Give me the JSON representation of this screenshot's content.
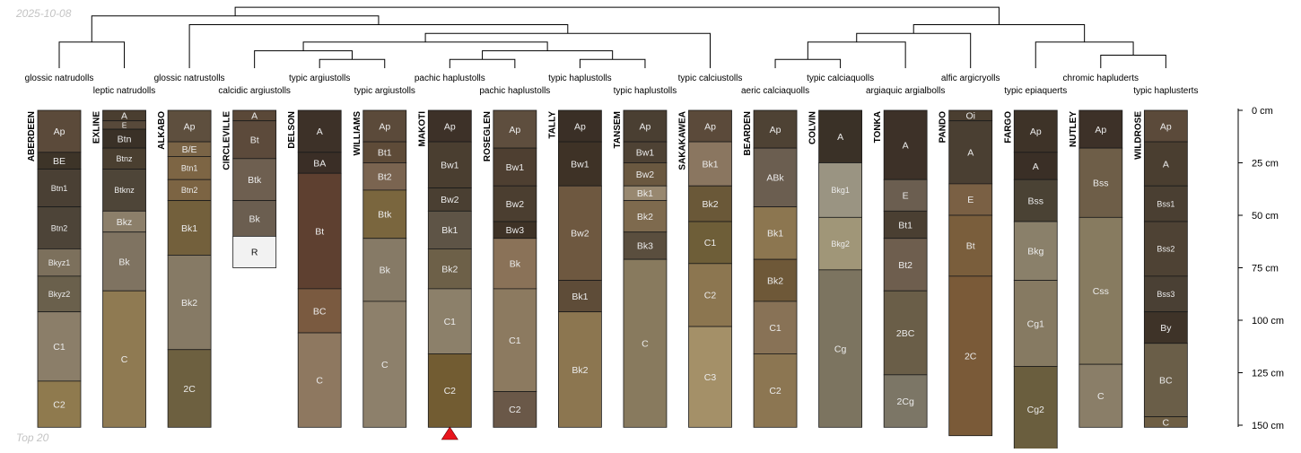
{
  "date_label": "2025-10-08",
  "footer_label": "Top 20",
  "colors": {
    "marker": "#e8141c",
    "line": "#000000",
    "horizon_border": "#1a1a1a"
  },
  "chart_data": {
    "type": "soil-profile-sketch",
    "depth_unit": "cm",
    "depth_axis": {
      "range": [
        0,
        150
      ],
      "ticks": [
        0,
        25,
        50,
        75,
        100,
        125,
        150
      ],
      "tick_labels": [
        "0 cm",
        "25 cm",
        "50 cm",
        "75 cm",
        "100 cm",
        "125 cm",
        "150 cm"
      ]
    },
    "marked_profile": "MAKOTI",
    "profiles": [
      {
        "name": "ABERDEEN",
        "taxon": "glossic natrudolls",
        "horizons": [
          {
            "name": "Ap",
            "top": 0,
            "bottom": 20,
            "color": "#5b4a3a"
          },
          {
            "name": "BE",
            "top": 20,
            "bottom": 28,
            "color": "#3d3428"
          },
          {
            "name": "Btn1",
            "top": 28,
            "bottom": 46,
            "color": "#4a4034"
          },
          {
            "name": "Btn2",
            "top": 46,
            "bottom": 66,
            "color": "#4d4438"
          },
          {
            "name": "Bkyz1",
            "top": 66,
            "bottom": 79,
            "color": "#7c705c"
          },
          {
            "name": "Bkyz2",
            "top": 79,
            "bottom": 96,
            "color": "#6a604c"
          },
          {
            "name": "C1",
            "top": 96,
            "bottom": 129,
            "color": "#8b7e69"
          },
          {
            "name": "C2",
            "top": 129,
            "bottom": 151,
            "color": "#8f7a4e"
          }
        ]
      },
      {
        "name": "EXLINE",
        "taxon": "leptic natrudolls",
        "horizons": [
          {
            "name": "A",
            "top": 0,
            "bottom": 5,
            "color": "#4a3e30"
          },
          {
            "name": "E",
            "top": 5,
            "bottom": 9,
            "color": "#57493a"
          },
          {
            "name": "Btn",
            "top": 9,
            "bottom": 18,
            "color": "#3a3127"
          },
          {
            "name": "Btnz",
            "top": 18,
            "bottom": 28,
            "color": "#4a3f30"
          },
          {
            "name": "Btknz",
            "top": 28,
            "bottom": 48,
            "color": "#4e4538"
          },
          {
            "name": "Bkz",
            "top": 48,
            "bottom": 58,
            "color": "#8c7f6a"
          },
          {
            "name": "Bk",
            "top": 58,
            "bottom": 86,
            "color": "#7f7361"
          },
          {
            "name": "C",
            "top": 86,
            "bottom": 151,
            "color": "#8f7a52"
          }
        ]
      },
      {
        "name": "ALKABO",
        "taxon": "glossic natrustolls",
        "horizons": [
          {
            "name": "Ap",
            "top": 0,
            "bottom": 15,
            "color": "#5e4f3e"
          },
          {
            "name": "B/E",
            "top": 15,
            "bottom": 22,
            "color": "#7a6446"
          },
          {
            "name": "Btn1",
            "top": 22,
            "bottom": 33,
            "color": "#7d6544"
          },
          {
            "name": "Btn2",
            "top": 33,
            "bottom": 43,
            "color": "#7c6443"
          },
          {
            "name": "Bk1",
            "top": 43,
            "bottom": 69,
            "color": "#73603c"
          },
          {
            "name": "Bk2",
            "top": 69,
            "bottom": 114,
            "color": "#867a65"
          },
          {
            "name": "2C",
            "top": 114,
            "bottom": 151,
            "color": "#6d6040"
          }
        ]
      },
      {
        "name": "CIRCLEVILLE",
        "taxon": "calcidic argiustolls",
        "horizons": [
          {
            "name": "A",
            "top": 0,
            "bottom": 5,
            "color": "#5a4838"
          },
          {
            "name": "Bt",
            "top": 5,
            "bottom": 23,
            "color": "#5c4a3b"
          },
          {
            "name": "Btk",
            "top": 23,
            "bottom": 43,
            "color": "#6e5f50"
          },
          {
            "name": "Bk",
            "top": 43,
            "bottom": 60,
            "color": "#6b5e50"
          },
          {
            "name": "R",
            "top": 60,
            "bottom": 75,
            "color": "#f2f2f2"
          }
        ]
      },
      {
        "name": "DELSON",
        "taxon": "typic argiustolls",
        "horizons": [
          {
            "name": "A",
            "top": 0,
            "bottom": 20,
            "color": "#3d3128"
          },
          {
            "name": "BA",
            "top": 20,
            "bottom": 30,
            "color": "#3a2e26"
          },
          {
            "name": "Bt",
            "top": 30,
            "bottom": 85,
            "color": "#5e4030"
          },
          {
            "name": "BC",
            "top": 85,
            "bottom": 106,
            "color": "#7a5a40"
          },
          {
            "name": "C",
            "top": 106,
            "bottom": 151,
            "color": "#8e7860"
          }
        ]
      },
      {
        "name": "WILLIAMS",
        "taxon": "typic argiustolls",
        "horizons": [
          {
            "name": "Ap",
            "top": 0,
            "bottom": 15,
            "color": "#5b4a3a"
          },
          {
            "name": "Bt1",
            "top": 15,
            "bottom": 25,
            "color": "#5e4b38"
          },
          {
            "name": "Bt2",
            "top": 25,
            "bottom": 38,
            "color": "#7a6450"
          },
          {
            "name": "Btk",
            "top": 38,
            "bottom": 61,
            "color": "#7a663e"
          },
          {
            "name": "Bk",
            "top": 61,
            "bottom": 91,
            "color": "#867a66"
          },
          {
            "name": "C",
            "top": 91,
            "bottom": 151,
            "color": "#8d806b"
          }
        ]
      },
      {
        "name": "MAKOTI",
        "taxon": "pachic haplustolls",
        "horizons": [
          {
            "name": "Ap",
            "top": 0,
            "bottom": 15,
            "color": "#3d3128"
          },
          {
            "name": "Bw1",
            "top": 15,
            "bottom": 37,
            "color": "#4a3e30"
          },
          {
            "name": "Bw2",
            "top": 37,
            "bottom": 48,
            "color": "#4a3f32"
          },
          {
            "name": "Bk1",
            "top": 48,
            "bottom": 66,
            "color": "#5e5446"
          },
          {
            "name": "Bk2",
            "top": 66,
            "bottom": 85,
            "color": "#6d6048"
          },
          {
            "name": "C1",
            "top": 85,
            "bottom": 116,
            "color": "#8c806a"
          },
          {
            "name": "C2",
            "top": 116,
            "bottom": 151,
            "color": "#725c32"
          }
        ]
      },
      {
        "name": "ROSEGLEN",
        "taxon": "pachic haplustolls",
        "horizons": [
          {
            "name": "Ap",
            "top": 0,
            "bottom": 18,
            "color": "#5e4e3e"
          },
          {
            "name": "Bw1",
            "top": 18,
            "bottom": 36,
            "color": "#4e3f31"
          },
          {
            "name": "Bw2",
            "top": 36,
            "bottom": 53,
            "color": "#4b3e30"
          },
          {
            "name": "Bw3",
            "top": 53,
            "bottom": 61,
            "color": "#3e3226"
          },
          {
            "name": "Bk",
            "top": 61,
            "bottom": 85,
            "color": "#8a7258"
          },
          {
            "name": "C1",
            "top": 85,
            "bottom": 134,
            "color": "#8c7a60"
          },
          {
            "name": "C2",
            "top": 134,
            "bottom": 151,
            "color": "#6a5848"
          }
        ]
      },
      {
        "name": "TALLY",
        "taxon": "typic haplustolls",
        "horizons": [
          {
            "name": "Ap",
            "top": 0,
            "bottom": 15,
            "color": "#3a2f26"
          },
          {
            "name": "Bw1",
            "top": 15,
            "bottom": 36,
            "color": "#3e3226"
          },
          {
            "name": "Bw2",
            "top": 36,
            "bottom": 81,
            "color": "#6e5840"
          },
          {
            "name": "Bk1",
            "top": 81,
            "bottom": 96,
            "color": "#5e4c38"
          },
          {
            "name": "Bk2",
            "top": 96,
            "bottom": 151,
            "color": "#8c7650"
          }
        ]
      },
      {
        "name": "TANSEM",
        "taxon": "typic haplustolls",
        "horizons": [
          {
            "name": "Ap",
            "top": 0,
            "bottom": 15,
            "color": "#4a3f32"
          },
          {
            "name": "Bw1",
            "top": 15,
            "bottom": 25,
            "color": "#4e4234"
          },
          {
            "name": "Bw2",
            "top": 25,
            "bottom": 36,
            "color": "#6a5840"
          },
          {
            "name": "Bk1",
            "top": 36,
            "bottom": 43,
            "color": "#988870"
          },
          {
            "name": "Bk2",
            "top": 43,
            "bottom": 58,
            "color": "#7e6a4e"
          },
          {
            "name": "Bk3",
            "top": 58,
            "bottom": 71,
            "color": "#5a4e3e"
          },
          {
            "name": "C",
            "top": 71,
            "bottom": 151,
            "color": "#887a5e"
          }
        ]
      },
      {
        "name": "SAKAKAWEA",
        "taxon": "typic calciustolls",
        "horizons": [
          {
            "name": "Ap",
            "top": 0,
            "bottom": 15,
            "color": "#5b4a3a"
          },
          {
            "name": "Bk1",
            "top": 15,
            "bottom": 36,
            "color": "#8a7660"
          },
          {
            "name": "Bk2",
            "top": 36,
            "bottom": 53,
            "color": "#6a5838"
          },
          {
            "name": "C1",
            "top": 53,
            "bottom": 73,
            "color": "#6e5e38"
          },
          {
            "name": "C2",
            "top": 73,
            "bottom": 103,
            "color": "#8c7650"
          },
          {
            "name": "C3",
            "top": 103,
            "bottom": 151,
            "color": "#a49068"
          }
        ]
      },
      {
        "name": "BEARDEN",
        "taxon": "aeric calciaquolls",
        "horizons": [
          {
            "name": "Ap",
            "top": 0,
            "bottom": 18,
            "color": "#4e4234"
          },
          {
            "name": "ABk",
            "top": 18,
            "bottom": 46,
            "color": "#6b5e50"
          },
          {
            "name": "Bk1",
            "top": 46,
            "bottom": 71,
            "color": "#8c7650"
          },
          {
            "name": "Bk2",
            "top": 71,
            "bottom": 91,
            "color": "#6e5838"
          },
          {
            "name": "C1",
            "top": 91,
            "bottom": 116,
            "color": "#887256"
          },
          {
            "name": "C2",
            "top": 116,
            "bottom": 151,
            "color": "#8c7652"
          }
        ]
      },
      {
        "name": "COLVIN",
        "taxon": "typic calciaquolls",
        "horizons": [
          {
            "name": "A",
            "top": 0,
            "bottom": 25,
            "color": "#3a3127"
          },
          {
            "name": "Bkg1",
            "top": 25,
            "bottom": 51,
            "color": "#9a9482"
          },
          {
            "name": "Bkg2",
            "top": 51,
            "bottom": 76,
            "color": "#a09678"
          },
          {
            "name": "Cg",
            "top": 76,
            "bottom": 151,
            "color": "#7c7460"
          }
        ]
      },
      {
        "name": "TONKA",
        "taxon": "argiaquic argialbolls",
        "horizons": [
          {
            "name": "A",
            "top": 0,
            "bottom": 33,
            "color": "#3d3128"
          },
          {
            "name": "E",
            "top": 33,
            "bottom": 48,
            "color": "#6b5e50"
          },
          {
            "name": "Bt1",
            "top": 48,
            "bottom": 61,
            "color": "#4a3f32"
          },
          {
            "name": "Bt2",
            "top": 61,
            "bottom": 86,
            "color": "#6e5e4e"
          },
          {
            "name": "2BC",
            "top": 86,
            "bottom": 126,
            "color": "#6a5e48"
          },
          {
            "name": "2Cg",
            "top": 126,
            "bottom": 151,
            "color": "#7c7666"
          }
        ]
      },
      {
        "name": "PANDO",
        "taxon": "alfic argicryolls",
        "horizons": [
          {
            "name": "Oi",
            "top": 0,
            "bottom": 5,
            "color": "#4a3e30"
          },
          {
            "name": "A",
            "top": 5,
            "bottom": 35,
            "color": "#4a3f32"
          },
          {
            "name": "E",
            "top": 35,
            "bottom": 50,
            "color": "#7a6044"
          },
          {
            "name": "Bt",
            "top": 50,
            "bottom": 79,
            "color": "#7a5e3c"
          },
          {
            "name": "2C",
            "top": 79,
            "bottom": 155,
            "color": "#7a5a38"
          }
        ]
      },
      {
        "name": "FARGO",
        "taxon": "typic epiaquerts",
        "horizons": [
          {
            "name": "Ap",
            "top": 0,
            "bottom": 20,
            "color": "#3e3328"
          },
          {
            "name": "A",
            "top": 20,
            "bottom": 33,
            "color": "#3a2f26"
          },
          {
            "name": "Bss",
            "top": 33,
            "bottom": 53,
            "color": "#4a4234"
          },
          {
            "name": "Bkg",
            "top": 53,
            "bottom": 81,
            "color": "#8a806a"
          },
          {
            "name": "Cg1",
            "top": 81,
            "bottom": 122,
            "color": "#867a62"
          },
          {
            "name": "Cg2",
            "top": 122,
            "bottom": 163,
            "color": "#6a5e3e"
          }
        ]
      },
      {
        "name": "NUTLEY",
        "taxon": "chromic hapluderts",
        "horizons": [
          {
            "name": "Ap",
            "top": 0,
            "bottom": 18,
            "color": "#3d3128"
          },
          {
            "name": "Bss",
            "top": 18,
            "bottom": 51,
            "color": "#6e5e48"
          },
          {
            "name": "Css",
            "top": 51,
            "bottom": 121,
            "color": "#877b60"
          },
          {
            "name": "C",
            "top": 121,
            "bottom": 151,
            "color": "#8a7e68"
          }
        ]
      },
      {
        "name": "WILDROSE",
        "taxon": "typic haplusterts",
        "horizons": [
          {
            "name": "Ap",
            "top": 0,
            "bottom": 15,
            "color": "#5b4a3a"
          },
          {
            "name": "A",
            "top": 15,
            "bottom": 36,
            "color": "#4a3e30"
          },
          {
            "name": "Bss1",
            "top": 36,
            "bottom": 53,
            "color": "#4a3f32"
          },
          {
            "name": "Bss2",
            "top": 53,
            "bottom": 79,
            "color": "#4e4234"
          },
          {
            "name": "Bss3",
            "top": 79,
            "bottom": 96,
            "color": "#4a4034"
          },
          {
            "name": "By",
            "top": 96,
            "bottom": 111,
            "color": "#3e3328"
          },
          {
            "name": "BC",
            "top": 111,
            "bottom": 146,
            "color": "#6a5e48"
          },
          {
            "name": "C",
            "top": 146,
            "bottom": 151,
            "color": "#6e5e44"
          }
        ]
      }
    ],
    "dendrogram": {
      "leaves": [
        "ABERDEEN",
        "EXLINE",
        "ALKABO",
        "CIRCLEVILLE",
        "DELSON",
        "WILLIAMS",
        "MAKOTI",
        "ROSEGLEN",
        "TALLY",
        "TANSEM",
        "SAKAKAWEA",
        "BEARDEN",
        "COLVIN",
        "TONKA",
        "PANDO",
        "FARGO",
        "NUTLEY",
        "WILDROSE"
      ],
      "merges": [
        {
          "left": 0,
          "right": 1,
          "height": 3.0
        },
        {
          "left": 4,
          "right": 5,
          "height": 1.0
        },
        {
          "left": 6,
          "right": 7,
          "height": 1.0
        },
        {
          "left": 8,
          "right": 9,
          "height": 1.0
        },
        {
          "left": 11,
          "right": 12,
          "height": 1.0
        },
        {
          "left": 16,
          "right": 17,
          "height": 1.5
        },
        {
          "left": 3,
          "right": "m1",
          "height": 2.0
        },
        {
          "left": "m2",
          "right": "m3",
          "height": 2.0
        },
        {
          "left": "m4",
          "right": 13,
          "height": 3.0
        },
        {
          "left": "m6",
          "right": "m7",
          "height": 3.0
        },
        {
          "left": 15,
          "right": "m5",
          "height": 3.0
        },
        {
          "left": "m8",
          "right": 14,
          "height": 4.0
        },
        {
          "left": "m9",
          "right": 10,
          "height": 4.0
        },
        {
          "left": 2,
          "right": "m12",
          "height": 5.0
        },
        {
          "left": "m11",
          "right": "m10",
          "height": 5.0
        },
        {
          "left": "m0",
          "right": "m13",
          "height": 6.0
        },
        {
          "left": "m15",
          "right": "m14",
          "height": 7.0
        }
      ]
    }
  }
}
